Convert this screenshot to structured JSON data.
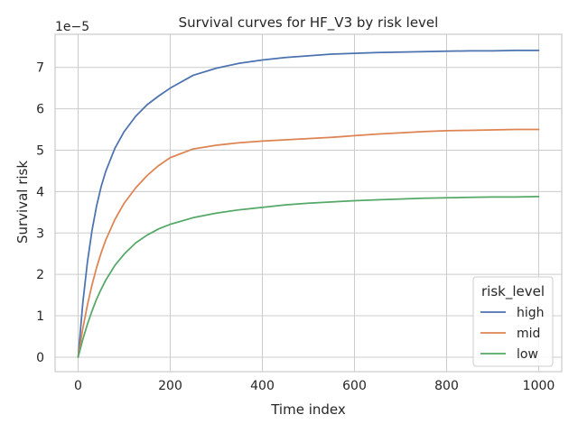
{
  "chart_data": {
    "type": "line",
    "title": "Survival curves for HF_V3 by risk level",
    "xlabel": "Time index",
    "ylabel": "Survival risk",
    "offset_text": "1e−5",
    "xlim": [
      -50,
      1050
    ],
    "ylim": [
      -0.35,
      7.8
    ],
    "x_ticks": [
      0,
      200,
      400,
      600,
      800,
      1000
    ],
    "y_ticks": [
      0,
      1,
      2,
      3,
      4,
      5,
      6,
      7
    ],
    "y_scale_note": "values in units of 1e-5",
    "grid": true,
    "legend": {
      "title": "risk_level",
      "placement": "lower-right"
    },
    "x": [
      0,
      10,
      20,
      30,
      40,
      50,
      60,
      80,
      100,
      125,
      150,
      175,
      200,
      250,
      300,
      350,
      400,
      450,
      500,
      550,
      600,
      650,
      700,
      750,
      800,
      850,
      900,
      950,
      1000
    ],
    "series": [
      {
        "name": "high",
        "color": "#4c72b0",
        "values": [
          0.0,
          1.29,
          2.28,
          3.05,
          3.65,
          4.12,
          4.49,
          5.05,
          5.45,
          5.82,
          6.1,
          6.31,
          6.5,
          6.81,
          6.98,
          7.1,
          7.18,
          7.24,
          7.28,
          7.32,
          7.34,
          7.36,
          7.37,
          7.38,
          7.39,
          7.4,
          7.4,
          7.41,
          7.41
        ]
      },
      {
        "name": "mid",
        "color": "#dd8452",
        "values": [
          0.0,
          0.68,
          1.25,
          1.74,
          2.16,
          2.52,
          2.83,
          3.33,
          3.72,
          4.09,
          4.39,
          4.63,
          4.82,
          5.03,
          5.12,
          5.18,
          5.22,
          5.25,
          5.28,
          5.31,
          5.35,
          5.39,
          5.42,
          5.45,
          5.47,
          5.48,
          5.49,
          5.5,
          5.5
        ]
      },
      {
        "name": "low",
        "color": "#55a868",
        "values": [
          0.0,
          0.42,
          0.79,
          1.11,
          1.4,
          1.64,
          1.86,
          2.22,
          2.49,
          2.76,
          2.95,
          3.1,
          3.21,
          3.37,
          3.48,
          3.56,
          3.62,
          3.68,
          3.72,
          3.75,
          3.78,
          3.8,
          3.82,
          3.84,
          3.85,
          3.86,
          3.87,
          3.87,
          3.88
        ]
      }
    ]
  }
}
